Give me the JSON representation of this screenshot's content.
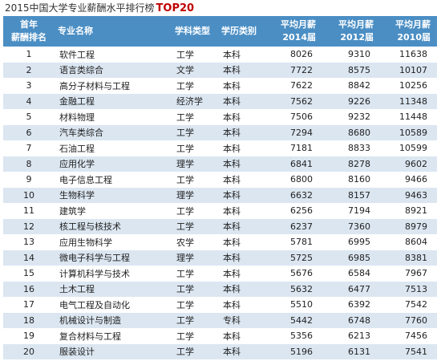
{
  "title": {
    "text": "2015中国大学专业薪酬水平排行榜",
    "highlight": "TOP20",
    "highlight_color": "#c00000"
  },
  "header": {
    "rank": "首年\n薪酬排名",
    "name": "专业名称",
    "discipline": "学科类型",
    "degree": "学历类别",
    "sal2014": "平均月薪\n2014届",
    "sal2012": "平均月薪\n2012届",
    "sal2010": "平均月薪\n2010届",
    "background": "#4a8ec4"
  },
  "rows": [
    {
      "rank": "1",
      "name": "软件工程",
      "discipline": "工学",
      "degree": "本科",
      "sal2014": "8026",
      "sal2012": "9310",
      "sal2010": "11638"
    },
    {
      "rank": "2",
      "name": "语言类综合",
      "discipline": "文学",
      "degree": "本科",
      "sal2014": "7722",
      "sal2012": "8575",
      "sal2010": "10107"
    },
    {
      "rank": "3",
      "name": "高分子材料与工程",
      "discipline": "工学",
      "degree": "本科",
      "sal2014": "7622",
      "sal2012": "8842",
      "sal2010": "10256"
    },
    {
      "rank": "4",
      "name": "金融工程",
      "discipline": "经济学",
      "degree": "本科",
      "sal2014": "7562",
      "sal2012": "9226",
      "sal2010": "11348"
    },
    {
      "rank": "5",
      "name": "材料物理",
      "discipline": "工学",
      "degree": "本科",
      "sal2014": "7506",
      "sal2012": "9232",
      "sal2010": "11448"
    },
    {
      "rank": "6",
      "name": "汽车类综合",
      "discipline": "工学",
      "degree": "本科",
      "sal2014": "7294",
      "sal2012": "8680",
      "sal2010": "10589"
    },
    {
      "rank": "7",
      "name": "石油工程",
      "discipline": "工学",
      "degree": "本科",
      "sal2014": "7181",
      "sal2012": "8833",
      "sal2010": "10599"
    },
    {
      "rank": "8",
      "name": "应用化学",
      "discipline": "理学",
      "degree": "本科",
      "sal2014": "6841",
      "sal2012": "8278",
      "sal2010": "9602"
    },
    {
      "rank": "9",
      "name": "电子信息工程",
      "discipline": "工学",
      "degree": "本科",
      "sal2014": "6800",
      "sal2012": "8160",
      "sal2010": "9466"
    },
    {
      "rank": "10",
      "name": "生物科学",
      "discipline": "理学",
      "degree": "本科",
      "sal2014": "6632",
      "sal2012": "8157",
      "sal2010": "9463"
    },
    {
      "rank": "11",
      "name": "建筑学",
      "discipline": "工学",
      "degree": "本科",
      "sal2014": "6256",
      "sal2012": "7194",
      "sal2010": "8921"
    },
    {
      "rank": "12",
      "name": "核工程与核技术",
      "discipline": "工学",
      "degree": "本科",
      "sal2014": "6237",
      "sal2012": "7360",
      "sal2010": "8979"
    },
    {
      "rank": "13",
      "name": "应用生物科学",
      "discipline": "农学",
      "degree": "本科",
      "sal2014": "5781",
      "sal2012": "6995",
      "sal2010": "8604"
    },
    {
      "rank": "14",
      "name": "微电子科学与工程",
      "discipline": "理学",
      "degree": "本科",
      "sal2014": "5725",
      "sal2012": "6985",
      "sal2010": "8381"
    },
    {
      "rank": "15",
      "name": "计算机科学与技术",
      "discipline": "工学",
      "degree": "本科",
      "sal2014": "5676",
      "sal2012": "6584",
      "sal2010": "7967"
    },
    {
      "rank": "16",
      "name": "土木工程",
      "discipline": "工学",
      "degree": "本科",
      "sal2014": "5632",
      "sal2012": "6477",
      "sal2010": "7513"
    },
    {
      "rank": "17",
      "name": "电气工程及自动化",
      "discipline": "工学",
      "degree": "本科",
      "sal2014": "5510",
      "sal2012": "6392",
      "sal2010": "7542"
    },
    {
      "rank": "18",
      "name": "机械设计与制造",
      "discipline": "工学",
      "degree": "专科",
      "sal2014": "5442",
      "sal2012": "6748",
      "sal2010": "7760"
    },
    {
      "rank": "19",
      "name": "复合材料与工程",
      "discipline": "工学",
      "degree": "本科",
      "sal2014": "5356",
      "sal2012": "6213",
      "sal2010": "7456"
    },
    {
      "rank": "20",
      "name": "服装设计",
      "discipline": "工学",
      "degree": "本科",
      "sal2014": "5196",
      "sal2012": "6131",
      "sal2010": "7541"
    }
  ],
  "colors": {
    "row_stripe": "#dbe6f1",
    "row_plain": "#ffffff"
  }
}
